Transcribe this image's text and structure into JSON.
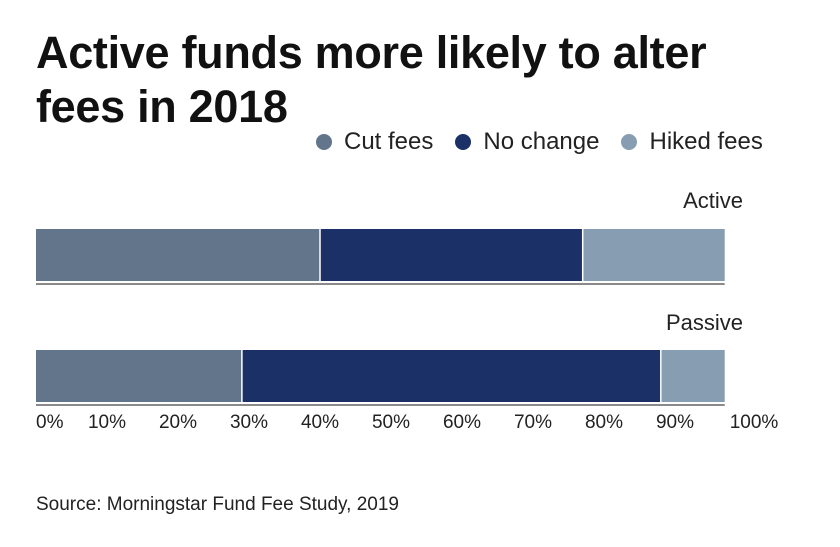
{
  "header": {
    "title": "Active funds more likely to alter fees in 2018"
  },
  "legend": [
    {
      "label": "Cut fees",
      "color": "#63758a"
    },
    {
      "label": "No change",
      "color": "#1a3066"
    },
    {
      "label": "Hiked fees",
      "color": "#879db2"
    }
  ],
  "chart_data": {
    "type": "bar",
    "orientation": "horizontal",
    "stacked": true,
    "title": "Active funds more likely to alter fees in 2018",
    "categories": [
      "Active",
      "Passive"
    ],
    "series": [
      {
        "name": "Cut fees",
        "color": "#63758a",
        "values": [
          40,
          29
        ]
      },
      {
        "name": "No change",
        "color": "#1a3066",
        "values": [
          37,
          59
        ]
      },
      {
        "name": "Hiked fees",
        "color": "#879db2",
        "values": [
          20,
          9
        ]
      }
    ],
    "xlim": [
      0,
      100
    ],
    "xticks": [
      "0%",
      "10%",
      "20%",
      "30%",
      "40%",
      "50%",
      "60%",
      "70%",
      "80%",
      "90%",
      "100%"
    ],
    "xlabel": "",
    "ylabel": "",
    "legend_position": "top-right"
  },
  "footer": {
    "source": "Source: Morningstar Fund Fee Study, 2019"
  }
}
